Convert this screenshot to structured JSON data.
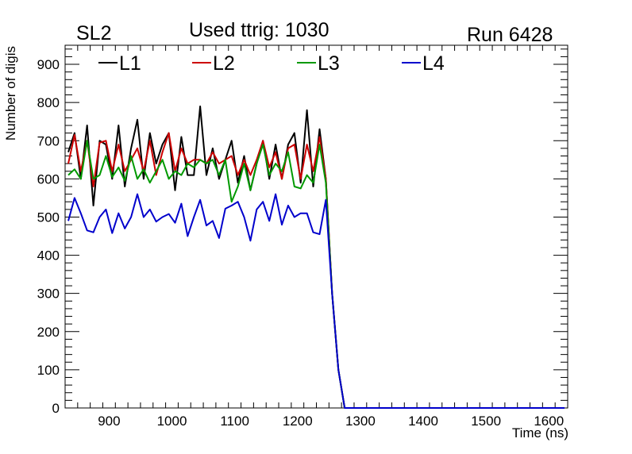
{
  "header": {
    "left": "SL2",
    "center": "Used ttrig: 1030",
    "right": "Run 6428"
  },
  "chart_data": {
    "type": "line",
    "title": "Used ttrig: 1030",
    "xlabel": "Time (ns)",
    "ylabel": "Number of digis",
    "xlim": [
      830,
      1630
    ],
    "ylim": [
      0,
      950
    ],
    "xticks": [
      900,
      1000,
      1100,
      1200,
      1300,
      1400,
      1500,
      1600
    ],
    "yticks": [
      0,
      100,
      200,
      300,
      400,
      500,
      600,
      700,
      800,
      900
    ],
    "grid": false,
    "legend_position": "top-left",
    "x": [
      835,
      845,
      855,
      865,
      875,
      885,
      895,
      905,
      915,
      925,
      935,
      945,
      955,
      965,
      975,
      985,
      995,
      1005,
      1015,
      1025,
      1035,
      1045,
      1055,
      1065,
      1075,
      1085,
      1095,
      1105,
      1115,
      1125,
      1135,
      1145,
      1155,
      1165,
      1175,
      1185,
      1195,
      1205,
      1215,
      1225,
      1235,
      1245,
      1255,
      1265,
      1275,
      1285,
      1300,
      1400,
      1500,
      1600,
      1625
    ],
    "series": [
      {
        "name": "L1",
        "color": "#000000",
        "values": [
          670,
          720,
          600,
          740,
          530,
          700,
          690,
          600,
          740,
          580,
          680,
          755,
          600,
          720,
          640,
          690,
          720,
          570,
          710,
          610,
          610,
          790,
          610,
          680,
          600,
          650,
          700,
          590,
          660,
          570,
          640,
          700,
          600,
          690,
          600,
          690,
          720,
          590,
          780,
          580,
          730,
          600,
          300,
          100,
          0,
          0,
          0,
          0,
          0,
          0,
          0
        ]
      },
      {
        "name": "L2",
        "color": "#cc0000",
        "values": [
          640,
          715,
          620,
          700,
          580,
          695,
          700,
          620,
          690,
          620,
          650,
          680,
          620,
          700,
          610,
          670,
          720,
          620,
          680,
          640,
          650,
          650,
          640,
          670,
          640,
          650,
          660,
          610,
          650,
          610,
          650,
          700,
          630,
          670,
          600,
          680,
          690,
          600,
          690,
          620,
          710,
          600,
          300,
          100,
          0,
          0,
          0,
          0,
          0,
          0,
          0
        ]
      },
      {
        "name": "L3",
        "color": "#009900",
        "values": [
          610,
          625,
          600,
          700,
          600,
          610,
          660,
          605,
          630,
          595,
          660,
          600,
          625,
          590,
          620,
          650,
          600,
          620,
          610,
          640,
          630,
          650,
          640,
          650,
          610,
          650,
          540,
          580,
          640,
          570,
          640,
          690,
          610,
          640,
          620,
          670,
          580,
          575,
          610,
          590,
          690,
          590,
          300,
          100,
          0,
          0,
          0,
          0,
          0,
          0,
          0
        ]
      },
      {
        "name": "L4",
        "color": "#0000cc",
        "values": [
          490,
          550,
          510,
          465,
          460,
          500,
          520,
          458,
          510,
          470,
          500,
          560,
          500,
          520,
          488,
          500,
          508,
          485,
          535,
          450,
          500,
          545,
          478,
          490,
          445,
          522,
          530,
          540,
          500,
          438,
          520,
          540,
          490,
          560,
          480,
          530,
          500,
          510,
          510,
          460,
          455,
          545,
          300,
          100,
          0,
          0,
          0,
          0,
          0,
          0,
          0
        ]
      }
    ]
  }
}
